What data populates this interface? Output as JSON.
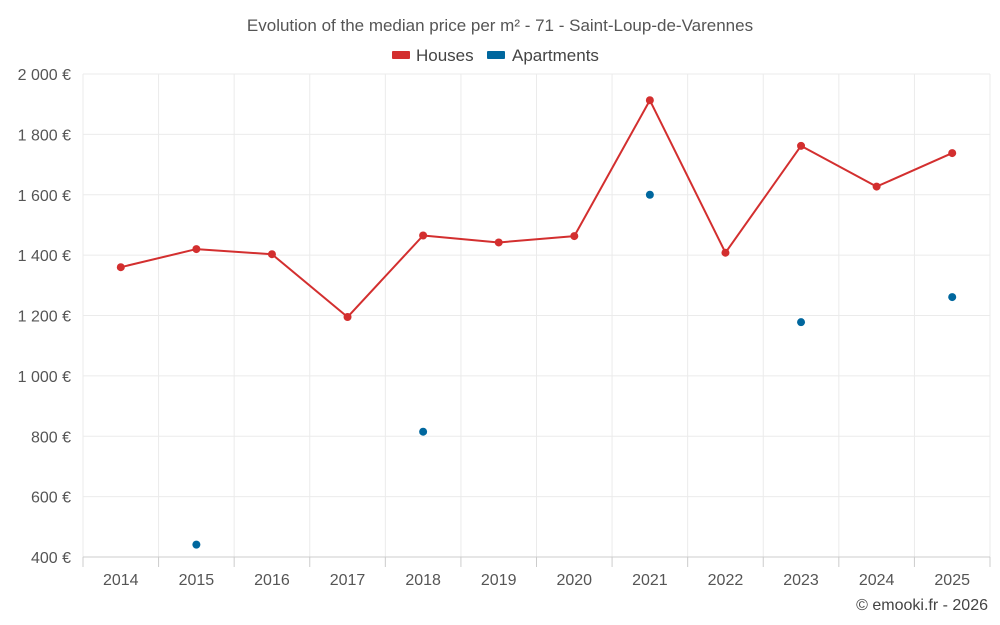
{
  "chart_data": {
    "type": "line",
    "title": "Evolution of the median price per m² - 71 - Saint-Loup-de-Varennes",
    "categories": [
      "2014",
      "2015",
      "2016",
      "2017",
      "2018",
      "2019",
      "2020",
      "2021",
      "2022",
      "2023",
      "2024",
      "2025"
    ],
    "ylim": [
      400,
      2000
    ],
    "yticks": [
      400,
      600,
      800,
      1000,
      1200,
      1400,
      1600,
      1800,
      2000
    ],
    "ytick_labels": [
      "400 €",
      "600 €",
      "800 €",
      "1 000 €",
      "1 200 €",
      "1 400 €",
      "1 600 €",
      "1 800 €",
      "2 000 €"
    ],
    "series": [
      {
        "name": "Houses",
        "color": "#d32f2f",
        "style": "line",
        "values": [
          1360,
          1420,
          1403,
          1195,
          1465,
          1442,
          1463,
          1913,
          1408,
          1762,
          1627,
          1738
        ]
      },
      {
        "name": "Apartments",
        "color": "#00679e",
        "style": "points",
        "values": [
          null,
          441,
          null,
          null,
          815,
          null,
          null,
          1600,
          null,
          1178,
          null,
          1261
        ]
      }
    ],
    "grid": true,
    "legend": "top-center"
  },
  "credit": "© emooki.fr - 2026"
}
